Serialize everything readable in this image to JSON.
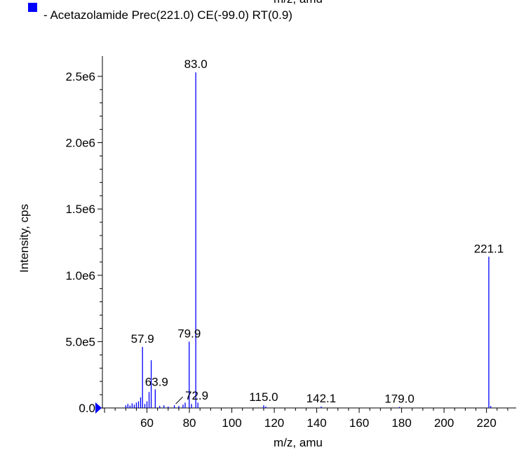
{
  "chart_data": {
    "type": "bar",
    "top_cut_text": "m/z, amu",
    "legend": {
      "entry": "- Acetazolamide Prec(221.0) CE(-99.0) RT(0.9)",
      "color": "#0000ff",
      "placement": "top-left"
    },
    "xlabel": "m/z, amu",
    "ylabel": "Intensity, cps",
    "xlim": [
      39,
      234
    ],
    "ylim": [
      0,
      2600000
    ],
    "x_ticks": [
      60,
      80,
      100,
      120,
      140,
      160,
      180,
      200,
      220
    ],
    "x_tick_labels": [
      "60",
      "80",
      "100",
      "120",
      "140",
      "160",
      "180",
      "200",
      "220"
    ],
    "y_ticks": [
      0,
      500000,
      1000000,
      1500000,
      2000000,
      2500000
    ],
    "y_tick_labels": [
      "0.0",
      "5.0e5",
      "1.0e6",
      "1.5e6",
      "2.0e6",
      "2.5e6"
    ],
    "series_color": "#0000ff",
    "peaks": [
      {
        "mz": 50.0,
        "intensity": 20000
      },
      {
        "mz": 51.0,
        "intensity": 30000
      },
      {
        "mz": 52.0,
        "intensity": 18000
      },
      {
        "mz": 53.0,
        "intensity": 35000
      },
      {
        "mz": 54.0,
        "intensity": 25000
      },
      {
        "mz": 55.0,
        "intensity": 40000
      },
      {
        "mz": 56.0,
        "intensity": 50000
      },
      {
        "mz": 57.0,
        "intensity": 80000
      },
      {
        "mz": 57.9,
        "intensity": 460000
      },
      {
        "mz": 59.0,
        "intensity": 30000
      },
      {
        "mz": 60.0,
        "intensity": 50000
      },
      {
        "mz": 61.0,
        "intensity": 120000
      },
      {
        "mz": 62.0,
        "intensity": 360000
      },
      {
        "mz": 63.9,
        "intensity": 140000
      },
      {
        "mz": 66.0,
        "intensity": 15000
      },
      {
        "mz": 68.0,
        "intensity": 20000
      },
      {
        "mz": 70.0,
        "intensity": 10000
      },
      {
        "mz": 72.9,
        "intensity": 20000
      },
      {
        "mz": 75.0,
        "intensity": 15000
      },
      {
        "mz": 77.0,
        "intensity": 25000
      },
      {
        "mz": 78.0,
        "intensity": 40000
      },
      {
        "mz": 79.9,
        "intensity": 500000
      },
      {
        "mz": 81.0,
        "intensity": 30000
      },
      {
        "mz": 83.0,
        "intensity": 2530000
      },
      {
        "mz": 84.0,
        "intensity": 40000
      },
      {
        "mz": 115.0,
        "intensity": 20000
      },
      {
        "mz": 116.0,
        "intensity": 10000
      },
      {
        "mz": 142.1,
        "intensity": 10000
      },
      {
        "mz": 179.0,
        "intensity": 8000
      },
      {
        "mz": 221.1,
        "intensity": 1140000
      },
      {
        "mz": 222.0,
        "intensity": 15000
      }
    ],
    "annotations": [
      {
        "text": "83.0",
        "mz": 83.0,
        "intensity": 2530000
      },
      {
        "text": "221.1",
        "mz": 221.1,
        "intensity": 1140000
      },
      {
        "text": "57.9",
        "mz": 57.9,
        "intensity": 460000
      },
      {
        "text": "79.9",
        "mz": 79.9,
        "intensity": 500000
      },
      {
        "text": "63.9",
        "mz": 63.9,
        "intensity": 140000
      },
      {
        "text": "72.9",
        "mz": 72.9,
        "intensity": 20000
      },
      {
        "text": "115.0",
        "mz": 115.0,
        "intensity": 20000
      },
      {
        "text": "142.1",
        "mz": 142.1,
        "intensity": 10000
      },
      {
        "text": "179.0",
        "mz": 179.0,
        "intensity": 8000
      }
    ]
  }
}
